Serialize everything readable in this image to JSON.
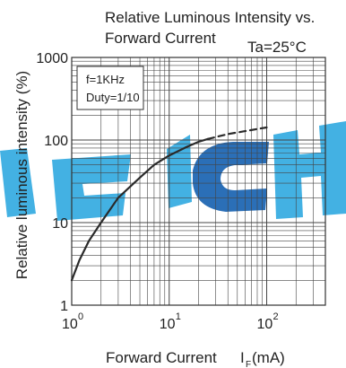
{
  "chart_data": {
    "type": "line",
    "title_line1": "Relative Luminous Intensity vs.",
    "title_line2": "Forward Current",
    "condition": "Ta=25°C",
    "ylabel": "Relative luminous intensity (%)",
    "xlabel": "Forward Current",
    "xlabel_symbol": "I",
    "xlabel_sub": "F",
    "xlabel_unit": "(mA)",
    "legend_box": [
      "f=1KHz",
      "Duty=1/10"
    ],
    "x_scale": "log",
    "y_scale": "log",
    "xlim": [
      1,
      400
    ],
    "ylim": [
      1,
      1000
    ],
    "x_ticks": [
      {
        "base": "10",
        "exp": "0"
      },
      {
        "base": "10",
        "exp": "1"
      },
      {
        "base": "10",
        "exp": "2"
      }
    ],
    "y_ticks": [
      "1",
      "10",
      "100",
      "1000"
    ],
    "grid": true,
    "watermark_colors": [
      "#2fa9e0",
      "#1560b0"
    ],
    "series": [
      {
        "style": "solid",
        "x": [
          1.0,
          1.2,
          1.5,
          2,
          3,
          5,
          7,
          10,
          15,
          20,
          25
        ],
        "y": [
          2.0,
          3.5,
          6.0,
          10,
          20,
          35,
          50,
          65,
          82,
          95,
          103
        ]
      },
      {
        "style": "dashed",
        "x": [
          25,
          40,
          60,
          80,
          100
        ],
        "y": [
          103,
          118,
          128,
          136,
          142
        ]
      }
    ]
  }
}
